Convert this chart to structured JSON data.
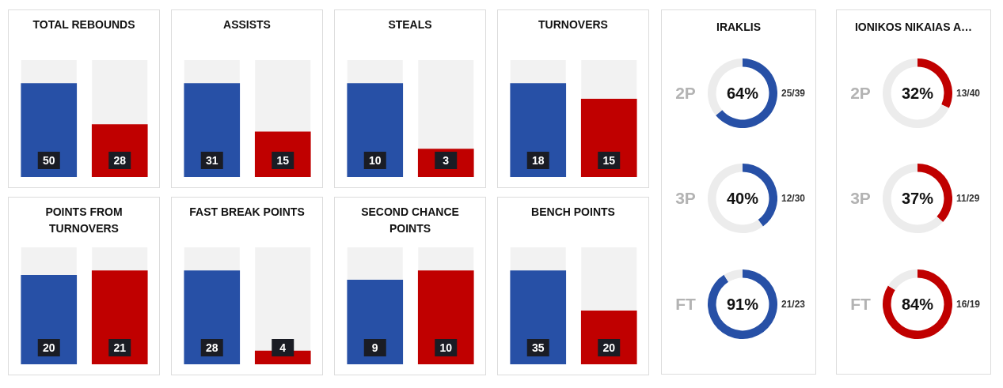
{
  "chart_data": [
    {
      "type": "bar",
      "title": "TOTAL REBOUNDS",
      "categories": [
        null,
        null
      ],
      "values": [
        50,
        28
      ],
      "colors": [
        "#2750a6",
        "#c00000"
      ],
      "data_labels": true
    },
    {
      "type": "bar",
      "title": "ASSISTS",
      "categories": [
        null,
        null
      ],
      "values": [
        31,
        15
      ],
      "colors": [
        "#2750a6",
        "#c00000"
      ],
      "data_labels": true
    },
    {
      "type": "bar",
      "title": "STEALS",
      "categories": [
        null,
        null
      ],
      "values": [
        10,
        3
      ],
      "colors": [
        "#2750a6",
        "#c00000"
      ],
      "data_labels": true
    },
    {
      "type": "bar",
      "title": "TURNOVERS",
      "categories": [
        null,
        null
      ],
      "values": [
        18,
        15
      ],
      "colors": [
        "#2750a6",
        "#c00000"
      ],
      "data_labels": true
    },
    {
      "type": "bar",
      "title": "POINTS FROM TURNOVERS",
      "categories": [
        null,
        null
      ],
      "values": [
        20,
        21
      ],
      "colors": [
        "#2750a6",
        "#c00000"
      ],
      "data_labels": true
    },
    {
      "type": "bar",
      "title": "FAST BREAK POINTS",
      "categories": [
        null,
        null
      ],
      "values": [
        28,
        4
      ],
      "colors": [
        "#2750a6",
        "#c00000"
      ],
      "data_labels": true
    },
    {
      "type": "bar",
      "title": "SECOND CHANCE POINTS",
      "categories": [
        null,
        null
      ],
      "values": [
        9,
        10
      ],
      "colors": [
        "#2750a6",
        "#c00000"
      ],
      "data_labels": true
    },
    {
      "type": "bar",
      "title": "BENCH POINTS",
      "categories": [
        null,
        null
      ],
      "values": [
        35,
        20
      ],
      "colors": [
        "#2750a6",
        "#c00000"
      ],
      "data_labels": true
    },
    {
      "type": "other",
      "title": "IRAKLIS"
    },
    {
      "type": "donut",
      "title": "2P",
      "categories": [
        null,
        null
      ],
      "values": [
        64,
        36
      ],
      "colors": [
        "#2750a6",
        "#ececec"
      ],
      "value_labels": [
        "64%",
        null
      ],
      "annotations": [
        "25/39"
      ]
    },
    {
      "type": "donut",
      "title": "3P",
      "categories": [
        null,
        null
      ],
      "values": [
        40,
        60
      ],
      "colors": [
        "#2750a6",
        "#ececec"
      ],
      "value_labels": [
        "40%",
        null
      ],
      "annotations": [
        "12/30"
      ]
    },
    {
      "type": "donut",
      "title": "FT",
      "categories": [
        null,
        null
      ],
      "values": [
        91,
        9
      ],
      "colors": [
        "#2750a6",
        "#ececec"
      ],
      "value_labels": [
        "91%",
        null
      ],
      "annotations": [
        "21/23"
      ]
    },
    {
      "type": "other",
      "title": "IONIKOS NIKAIAS A…"
    },
    {
      "type": "donut",
      "title": "2P",
      "categories": [
        null,
        null
      ],
      "values": [
        32,
        68
      ],
      "colors": [
        "#c00000",
        "#ececec"
      ],
      "value_labels": [
        "32%",
        null
      ],
      "annotations": [
        "13/40"
      ]
    },
    {
      "type": "donut",
      "title": "3P",
      "categories": [
        null,
        null
      ],
      "values": [
        37,
        63
      ],
      "colors": [
        "#c00000",
        "#ececec"
      ],
      "value_labels": [
        "37%",
        null
      ],
      "annotations": [
        "11/29"
      ]
    },
    {
      "type": "donut",
      "title": "FT",
      "categories": [
        null,
        null
      ],
      "values": [
        84,
        16
      ],
      "colors": [
        "#c00000",
        "#ececec"
      ],
      "value_labels": [
        "84%",
        null
      ],
      "annotations": [
        "16/19"
      ]
    }
  ]
}
